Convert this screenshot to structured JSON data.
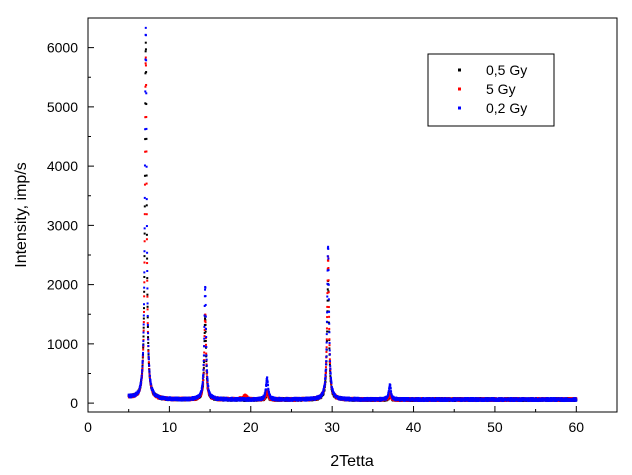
{
  "chart_data": {
    "type": "scatter",
    "title": "",
    "xlabel": "2Tetta",
    "ylabel": "Intensity, imp/s",
    "xlim": [
      0,
      65
    ],
    "ylim": [
      -150,
      6500
    ],
    "x_ticks": [
      0,
      10,
      20,
      30,
      40,
      50,
      60
    ],
    "y_ticks": [
      0,
      1000,
      2000,
      3000,
      4000,
      5000,
      6000
    ],
    "grid": false,
    "legend_position": "top-right",
    "series": [
      {
        "name": "0,5 Gy",
        "color": "#000000",
        "baseline": 60,
        "x_range": [
          5,
          60
        ],
        "peaks": [
          {
            "x": 7.1,
            "y": 6100,
            "width": 0.13
          },
          {
            "x": 14.4,
            "y": 1450,
            "width": 0.13
          },
          {
            "x": 22.0,
            "y": 180,
            "width": 0.15
          },
          {
            "x": 29.5,
            "y": 2050,
            "width": 0.14
          },
          {
            "x": 37.1,
            "y": 120,
            "width": 0.15
          }
        ]
      },
      {
        "name": "5 Gy",
        "color": "#ff0000",
        "baseline": 60,
        "x_range": [
          5,
          60
        ],
        "peaks": [
          {
            "x": 7.1,
            "y": 5850,
            "width": 0.13
          },
          {
            "x": 14.4,
            "y": 1500,
            "width": 0.13
          },
          {
            "x": 19.3,
            "y": 120,
            "width": 0.3
          },
          {
            "x": 22.0,
            "y": 200,
            "width": 0.15
          },
          {
            "x": 29.5,
            "y": 2450,
            "width": 0.14
          },
          {
            "x": 37.1,
            "y": 150,
            "width": 0.15
          }
        ]
      },
      {
        "name": "0,2 Gy",
        "color": "#0000ff",
        "baseline": 60,
        "x_range": [
          5,
          60
        ],
        "peaks": [
          {
            "x": 7.1,
            "y": 6350,
            "width": 0.13
          },
          {
            "x": 14.4,
            "y": 1980,
            "width": 0.13
          },
          {
            "x": 22.0,
            "y": 420,
            "width": 0.15
          },
          {
            "x": 29.5,
            "y": 2650,
            "width": 0.14
          },
          {
            "x": 37.1,
            "y": 310,
            "width": 0.15
          }
        ]
      }
    ]
  }
}
